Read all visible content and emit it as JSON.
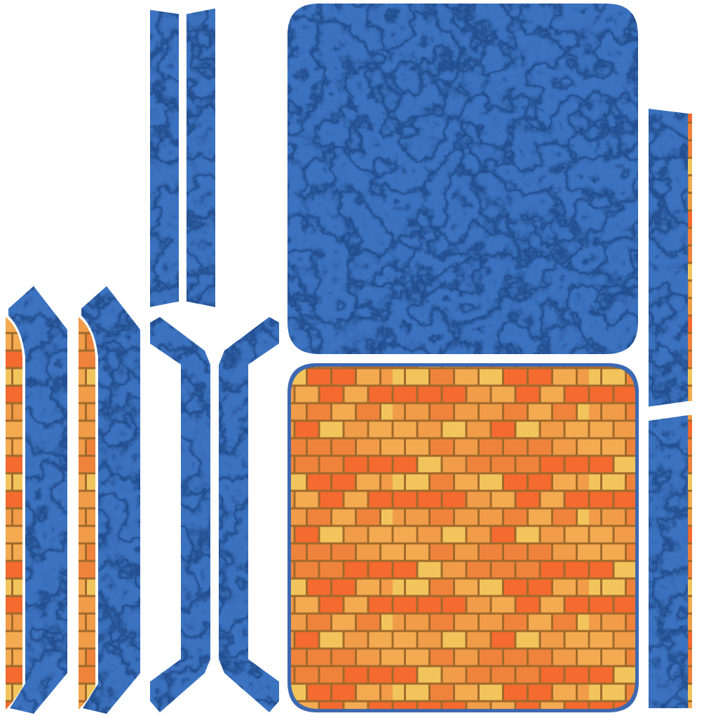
{
  "atlas": {
    "textures": [
      {
        "name": "marble",
        "base_color": "#3E75C2",
        "vein_color": "#1F4685",
        "highlight_color": "#6B9CE0"
      },
      {
        "name": "brick",
        "mortar_color": "#A06A2C",
        "border_color": "#3E68B0",
        "brick_colors": [
          "#F2C55C",
          "#F19C48",
          "#F0833C",
          "#F46A2F",
          "#F4AA50"
        ]
      }
    ],
    "background_color": "#ffffff"
  }
}
